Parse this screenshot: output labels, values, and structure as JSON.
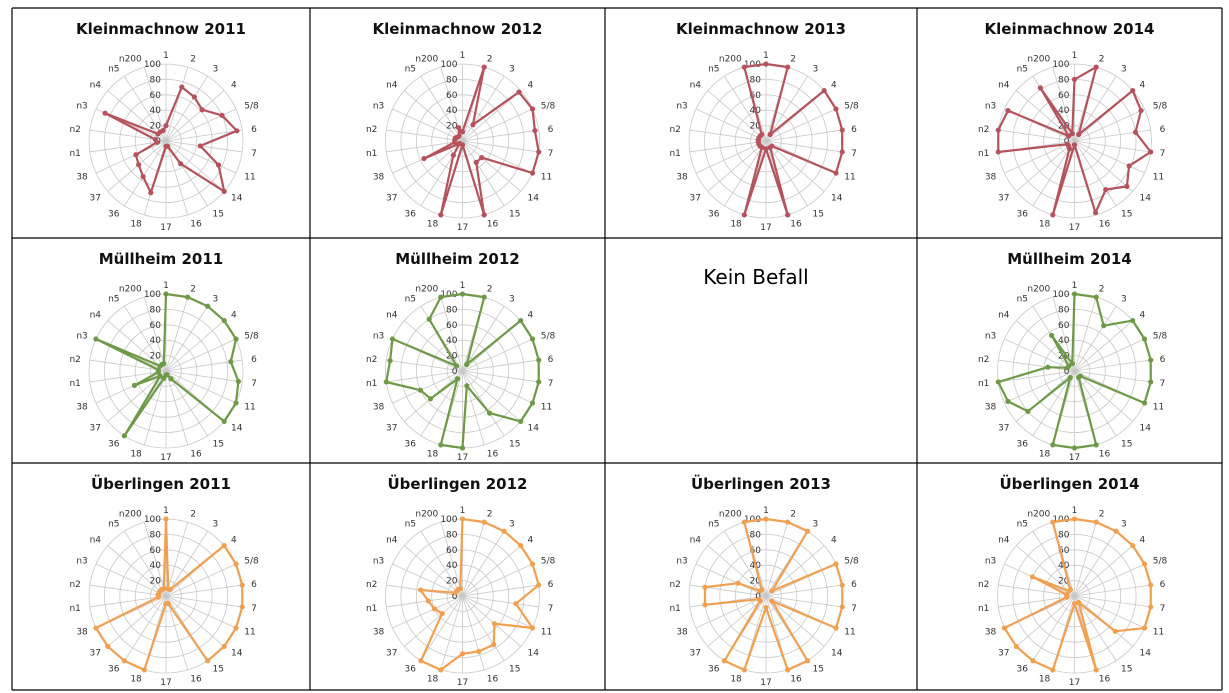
{
  "no_infestation_label": "Kein Befall",
  "axis_labels": [
    "1",
    "2",
    "3",
    "4",
    "5/8",
    "6",
    "7",
    "11",
    "14",
    "15",
    "16",
    "17",
    "18",
    "36",
    "37",
    "38",
    "n1",
    "n2",
    "n3",
    "n4",
    "n5",
    "n200"
  ],
  "radial_ticks": [
    "0",
    "20",
    "40",
    "60",
    "80",
    "100"
  ],
  "chart_data": [
    {
      "type": "radar",
      "title": "Kleinmachnow 2011",
      "color": "#b5525c",
      "rlim": [
        0,
        100
      ],
      "values": [
        20,
        73,
        68,
        62,
        80,
        93,
        45,
        75,
        100,
        35,
        7,
        7,
        70,
        55,
        47,
        43,
        12,
        14,
        87,
        14,
        14,
        14
      ]
    },
    {
      "type": "radar",
      "title": "Kleinmachnow 2012",
      "color": "#b5525c",
      "rlim": [
        0,
        100
      ],
      "values": [
        12,
        100,
        25,
        97,
        100,
        95,
        100,
        100,
        33,
        33,
        100,
        5,
        100,
        22,
        5,
        55,
        10,
        10,
        10,
        8,
        8,
        18
      ]
    },
    {
      "type": "radar",
      "title": "Kleinmachnow 2013",
      "color": "#b5525c",
      "rlim": [
        0,
        100
      ],
      "values": [
        100,
        100,
        10,
        100,
        100,
        100,
        100,
        100,
        10,
        10,
        100,
        10,
        100,
        10,
        10,
        10,
        10,
        10,
        10,
        10,
        10,
        100
      ]
    },
    {
      "type": "radar",
      "title": "Kleinmachnow 2014",
      "color": "#b5525c",
      "rlim": [
        0,
        100
      ],
      "values": [
        80,
        100,
        10,
        100,
        95,
        80,
        100,
        78,
        90,
        75,
        97,
        5,
        100,
        12,
        10,
        10,
        100,
        100,
        95,
        10,
        82,
        10
      ]
    },
    {
      "type": "radar",
      "title": "Müllheim 2011",
      "color": "#6e9a48",
      "rlim": [
        0,
        100
      ],
      "values": [
        100,
        100,
        100,
        100,
        100,
        85,
        95,
        100,
        100,
        12,
        5,
        5,
        10,
        100,
        10,
        45,
        10,
        10,
        100,
        10,
        10,
        10
      ]
    },
    {
      "type": "radar",
      "title": "Müllheim 2012",
      "color": "#6e9a48",
      "rlim": [
        0,
        100
      ],
      "values": [
        100,
        100,
        10,
        100,
        100,
        100,
        100,
        100,
        100,
        65,
        20,
        100,
        100,
        12,
        55,
        60,
        100,
        95,
        100,
        10,
        80,
        100
      ]
    },
    {
      "type": "radar",
      "title": "Müllheim 2014",
      "color": "#6e9a48",
      "rlim": [
        0,
        100
      ],
      "values": [
        100,
        100,
        70,
        100,
        100,
        100,
        100,
        100,
        10,
        10,
        100,
        100,
        100,
        10,
        80,
        95,
        100,
        35,
        10,
        10,
        55,
        10
      ]
    },
    {
      "type": "radar",
      "title": "Überlingen 2011",
      "color": "#f0a050",
      "rlim": [
        0,
        100
      ],
      "values": [
        100,
        10,
        10,
        100,
        100,
        100,
        100,
        100,
        100,
        100,
        10,
        10,
        100,
        100,
        100,
        100,
        10,
        10,
        10,
        10,
        10,
        10
      ]
    },
    {
      "type": "radar",
      "title": "Überlingen 2012",
      "color": "#f0a050",
      "rlim": [
        0,
        100
      ],
      "values": [
        100,
        100,
        100,
        100,
        100,
        100,
        70,
        100,
        55,
        75,
        75,
        75,
        100,
        100,
        35,
        40,
        45,
        55,
        10,
        10,
        10,
        10
      ]
    },
    {
      "type": "radar",
      "title": "Überlingen 2013",
      "color": "#f0a050",
      "rlim": [
        0,
        100
      ],
      "values": [
        100,
        100,
        100,
        10,
        100,
        100,
        100,
        100,
        10,
        100,
        100,
        15,
        100,
        100,
        10,
        10,
        80,
        80,
        40,
        10,
        10,
        100
      ]
    },
    {
      "type": "radar",
      "title": "Überlingen 2014",
      "color": "#f0a050",
      "rlim": [
        0,
        100
      ],
      "values": [
        100,
        100,
        100,
        100,
        100,
        100,
        100,
        100,
        70,
        10,
        100,
        10,
        100,
        100,
        100,
        100,
        10,
        10,
        60,
        10,
        10,
        100
      ]
    }
  ]
}
